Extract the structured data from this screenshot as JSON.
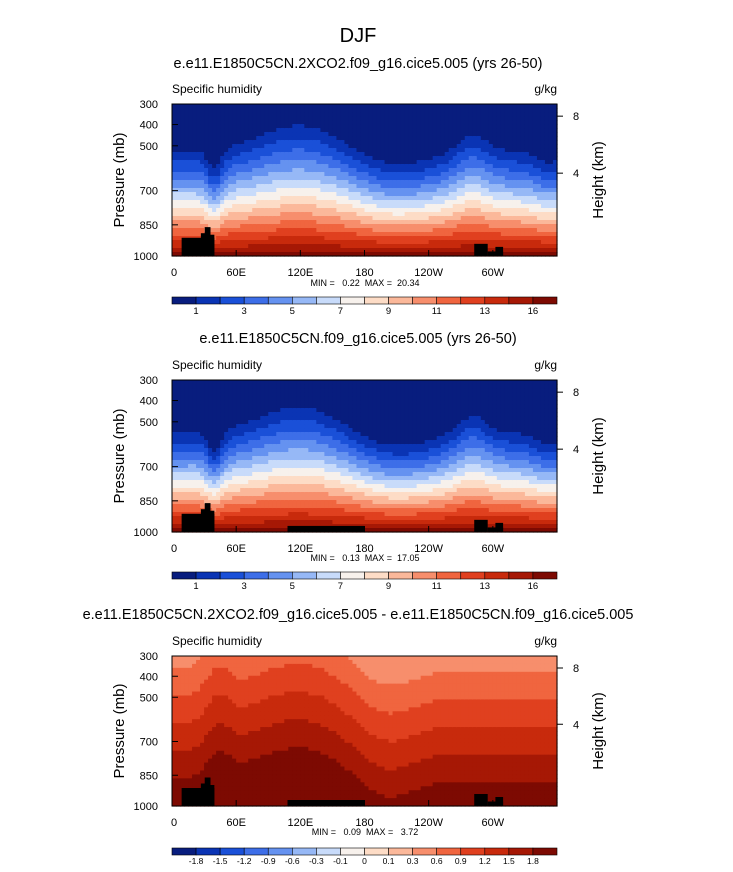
{
  "figure": {
    "title": "DJF"
  },
  "chart_data": [
    {
      "type": "heatmap",
      "title": "e.e11.E1850C5CN.2XCO2.f09_g16.cice5.005 (yrs 26-50)",
      "left_label": "Specific humidity",
      "right_label": "g/kg",
      "ylabel": "Pressure (mb)",
      "ylabel_right": "Height (km)",
      "xticks": [
        "0",
        "60E",
        "120E",
        "180",
        "120W",
        "60W"
      ],
      "yticks": [
        "300",
        "400",
        "500",
        "700",
        "850",
        "1000"
      ],
      "yticks_right": [
        "8",
        "4"
      ],
      "stats": "MIN =   0.22  MAX =  20.34",
      "colorbar_labels": [
        "1",
        "3",
        "5",
        "7",
        "9",
        "11",
        "13",
        "16"
      ],
      "colorbar_colors": [
        "#081d7e",
        "#0a34b4",
        "#1a50d8",
        "#3d6ee8",
        "#6592f0",
        "#96b8f6",
        "#c8dbfa",
        "#f7f1ec",
        "#fddcc6",
        "#fbb89a",
        "#f78e6c",
        "#f0653f",
        "#e0401f",
        "#c82a0c",
        "#a61805",
        "#7d0a02"
      ],
      "field": "scenario_2xco2"
    },
    {
      "type": "heatmap",
      "title": "e.e11.E1850C5CN.f09_g16.cice5.005 (yrs 26-50)",
      "left_label": "Specific humidity",
      "right_label": "g/kg",
      "ylabel": "Pressure (mb)",
      "ylabel_right": "Height (km)",
      "xticks": [
        "0",
        "60E",
        "120E",
        "180",
        "120W",
        "60W"
      ],
      "yticks": [
        "300",
        "400",
        "500",
        "700",
        "850",
        "1000"
      ],
      "yticks_right": [
        "8",
        "4"
      ],
      "stats": "MIN =   0.13  MAX =  17.05",
      "colorbar_labels": [
        "1",
        "3",
        "5",
        "7",
        "9",
        "11",
        "13",
        "16"
      ],
      "colorbar_colors": [
        "#081d7e",
        "#0a34b4",
        "#1a50d8",
        "#3d6ee8",
        "#6592f0",
        "#96b8f6",
        "#c8dbfa",
        "#f7f1ec",
        "#fddcc6",
        "#fbb89a",
        "#f78e6c",
        "#f0653f",
        "#e0401f",
        "#c82a0c",
        "#a61805",
        "#7d0a02"
      ],
      "field": "scenario_control"
    },
    {
      "type": "heatmap",
      "title": "e.e11.E1850C5CN.2XCO2.f09_g16.cice5.005 - e.e11.E1850C5CN.f09_g16.cice5.005",
      "left_label": "Specific humidity",
      "right_label": "g/kg",
      "ylabel": "Pressure (mb)",
      "ylabel_right": "Height (km)",
      "xticks": [
        "0",
        "60E",
        "120E",
        "180",
        "120W",
        "60W"
      ],
      "yticks": [
        "300",
        "400",
        "500",
        "700",
        "850",
        "1000"
      ],
      "yticks_right": [
        "8",
        "4"
      ],
      "stats": "MIN =   0.09  MAX =   3.72",
      "colorbar_labels": [
        "-1.8",
        "-1.5",
        "-1.2",
        "-0.9",
        "-0.6",
        "-0.3",
        "-0.1",
        "0",
        "0.1",
        "0.3",
        "0.6",
        "0.9",
        "1.2",
        "1.5",
        "1.8"
      ],
      "colorbar_colors": [
        "#081d7e",
        "#0a34b4",
        "#1a50d8",
        "#3d6ee8",
        "#6592f0",
        "#96b8f6",
        "#c8dbfa",
        "#f7f1ec",
        "#fddcc6",
        "#fbb89a",
        "#f78e6c",
        "#f0653f",
        "#e0401f",
        "#c82a0c",
        "#a61805",
        "#7d0a02"
      ],
      "field": "difference"
    }
  ]
}
